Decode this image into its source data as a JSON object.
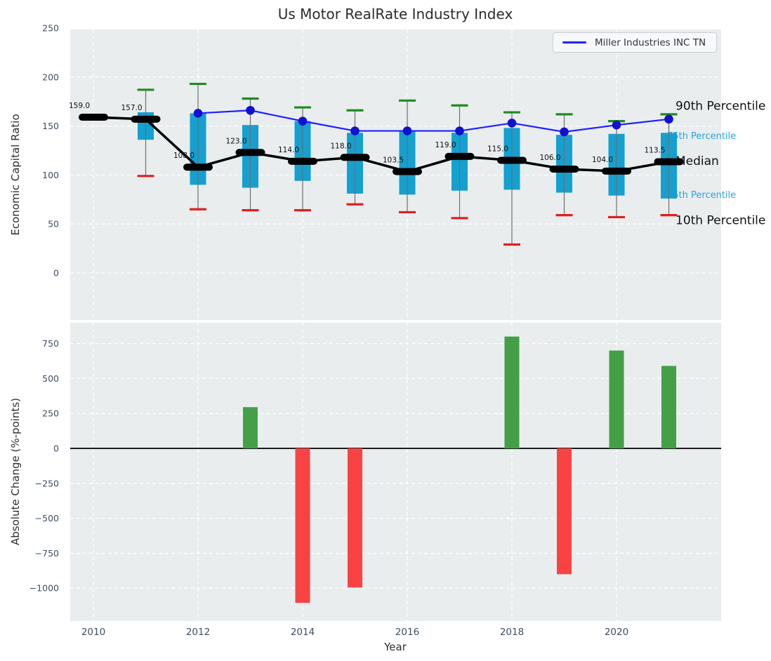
{
  "title": "Us Motor RealRate Industry Index",
  "top_chart": {
    "ylabel": "Economic Capital Ratio",
    "ytick_labels": [
      "250",
      "200",
      "150",
      "100",
      "50",
      "0"
    ],
    "ytick_values": [
      250,
      200,
      150,
      100,
      50,
      0
    ],
    "legend": {
      "label": "Miller Industries INC TN",
      "line_color": "#2020ff"
    }
  },
  "bottom_chart": {
    "ylabel": "Absolute Change (%-points)",
    "xlabel": "Year",
    "ytick_labels": [
      "750",
      "500",
      "250",
      "0",
      "−250",
      "−500",
      "−750",
      "−1000"
    ],
    "ytick_values": [
      750,
      500,
      250,
      0,
      -250,
      -500,
      -750,
      -1000
    ],
    "xtick_labels": [
      "2010",
      "2012",
      "2014",
      "2016",
      "2018",
      "2020"
    ],
    "xtick_values": [
      2010,
      2012,
      2014,
      2016,
      2018,
      2020
    ]
  },
  "colors": {
    "plot_bg": "#e9edee",
    "grid": "#ffffff",
    "tick_label": "#3e4e63",
    "box_fill": "#14a0d0",
    "whisker": "#6f6f6f",
    "cap_high": "#1f8b1f",
    "cap_low": "#e01f1f",
    "median": "#000000",
    "line": "#2020ff",
    "dot": "#1111d0",
    "bar_positive": "#43a047",
    "bar_negative": "#f94343",
    "annotation_major": "#111111",
    "annotation_minor": "#2aa3dd",
    "data_label": "#111111"
  },
  "chart_data": [
    {
      "type": "box",
      "title": "Us Motor RealRate Industry Index",
      "ylabel": "Economic Capital Ratio",
      "ylim": [
        -50,
        252
      ],
      "grid": true,
      "years": [
        2010,
        2011,
        2012,
        2013,
        2014,
        2015,
        2016,
        2017,
        2018,
        2019,
        2020,
        2021
      ],
      "boxes": [
        {
          "year": 2010,
          "p10": null,
          "q1": null,
          "median": 159.0,
          "q3": null,
          "p90": 161,
          "label": "159.0"
        },
        {
          "year": 2011,
          "p10": 99,
          "q1": 136,
          "median": 157.0,
          "q3": 164,
          "p90": 187,
          "label": "157.0"
        },
        {
          "year": 2012,
          "p10": 65,
          "q1": 90,
          "median": 108.0,
          "q3": 163,
          "p90": 193,
          "label": "108.0"
        },
        {
          "year": 2013,
          "p10": 64,
          "q1": 87,
          "median": 123.0,
          "q3": 151,
          "p90": 178,
          "label": "123.0"
        },
        {
          "year": 2014,
          "p10": 64,
          "q1": 94,
          "median": 114.0,
          "q3": 155,
          "p90": 169,
          "label": "114.0"
        },
        {
          "year": 2015,
          "p10": 70,
          "q1": 81,
          "median": 118.0,
          "q3": 143,
          "p90": 166,
          "label": "118.0"
        },
        {
          "year": 2016,
          "p10": 62,
          "q1": 80,
          "median": 103.5,
          "q3": 145,
          "p90": 176,
          "label": "103.5"
        },
        {
          "year": 2017,
          "p10": 56,
          "q1": 84,
          "median": 119.0,
          "q3": 143,
          "p90": 171,
          "label": "119.0"
        },
        {
          "year": 2018,
          "p10": 29,
          "q1": 85,
          "median": 115.0,
          "q3": 148,
          "p90": 164,
          "label": "115.0"
        },
        {
          "year": 2019,
          "p10": 59,
          "q1": 82,
          "median": 106.0,
          "q3": 141,
          "p90": 162,
          "label": "106.0"
        },
        {
          "year": 2020,
          "p10": 57,
          "q1": 79,
          "median": 104.0,
          "q3": 142,
          "p90": 155,
          "label": "104.0"
        },
        {
          "year": 2021,
          "p10": 59,
          "q1": 76,
          "median": 113.5,
          "q3": 143,
          "p90": 162,
          "label": "113.5"
        }
      ],
      "series": [
        {
          "name": "Miller Industries INC TN",
          "points": [
            {
              "year": 2012,
              "value": 163
            },
            {
              "year": 2013,
              "value": 166
            },
            {
              "year": 2014,
              "value": 155
            },
            {
              "year": 2015,
              "value": 145
            },
            {
              "year": 2016,
              "value": 145
            },
            {
              "year": 2017,
              "value": 145
            },
            {
              "year": 2018,
              "value": 153
            },
            {
              "year": 2019,
              "value": 144
            },
            {
              "year": 2020,
              "value": 151
            },
            {
              "year": 2021,
              "value": 157
            }
          ]
        }
      ],
      "annotations": [
        {
          "label": "90th Percentile",
          "value": 171,
          "tier": "major"
        },
        {
          "label": "75th Percentile",
          "value": 141,
          "tier": "minor"
        },
        {
          "label": "Median",
          "value": 114.5,
          "tier": "major"
        },
        {
          "label": "25th Percentile",
          "value": 81,
          "tier": "minor"
        },
        {
          "label": "10th Percentile",
          "value": 54,
          "tier": "major"
        }
      ],
      "legend_position": "upper right"
    },
    {
      "type": "bar",
      "ylabel": "Absolute Change (%-points)",
      "xlabel": "Year",
      "ylim": [
        -1230,
        900
      ],
      "grid": true,
      "bars": [
        {
          "year": 2013,
          "value": 295
        },
        {
          "year": 2014,
          "value": -1105
        },
        {
          "year": 2015,
          "value": -995
        },
        {
          "year": 2018,
          "value": 800
        },
        {
          "year": 2019,
          "value": -900
        },
        {
          "year": 2020,
          "value": 700
        },
        {
          "year": 2021,
          "value": 590
        }
      ]
    }
  ]
}
